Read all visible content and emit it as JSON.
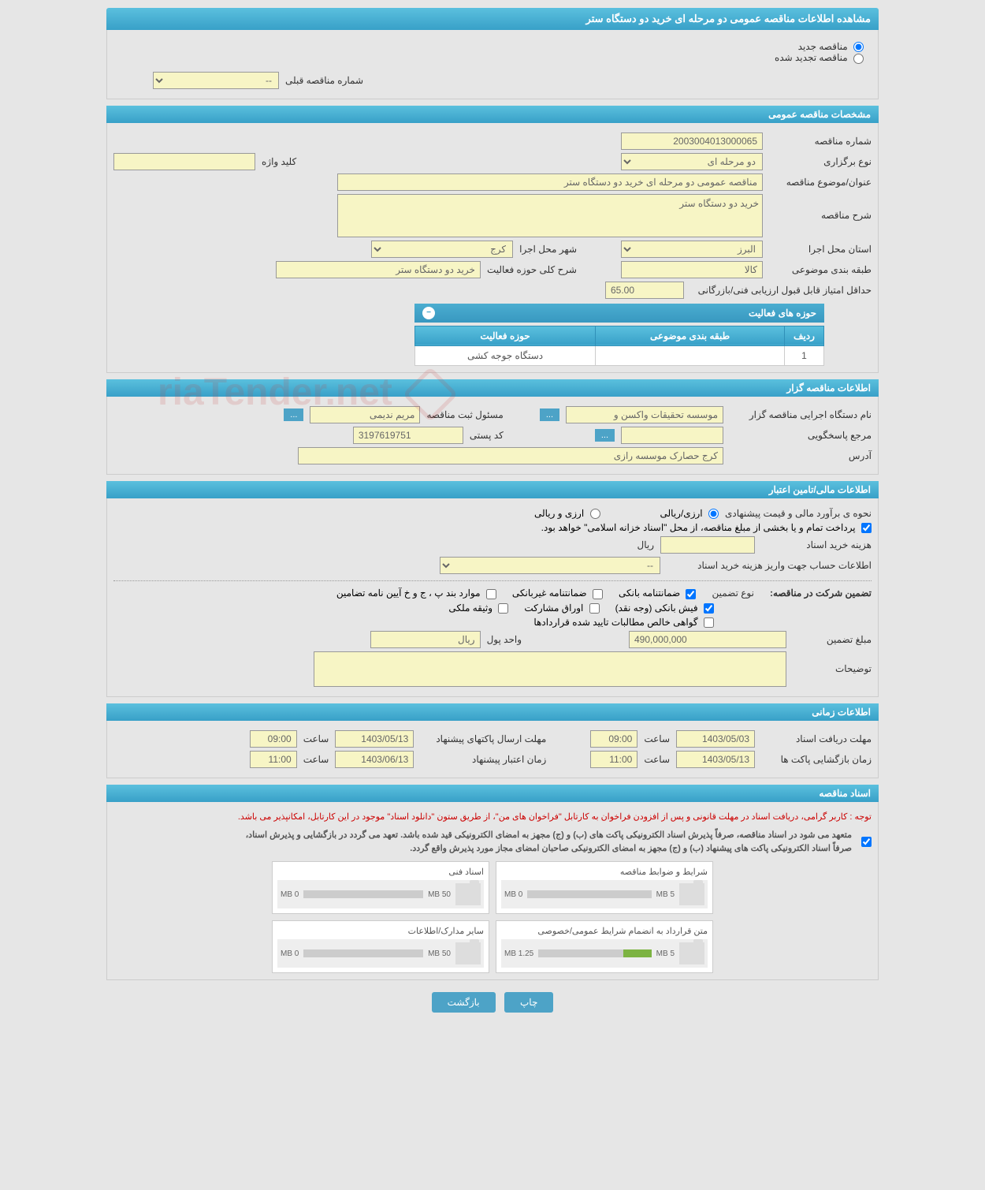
{
  "page_title": "مشاهده اطلاعات مناقصه عمومی دو مرحله ای خرید دو دستگاه ستر",
  "radio_options": {
    "new_tender": "مناقصه جدید",
    "renewed_tender": "مناقصه تجدید شده"
  },
  "prev_tender_label": "شماره مناقصه قبلی",
  "prev_tender_value": "--",
  "section_general": "مشخصات مناقصه عمومی",
  "tender_number_label": "شماره مناقصه",
  "tender_number": "2003004013000065",
  "holding_type_label": "نوع برگزاری",
  "holding_type": "دو مرحله ای",
  "keyword_label": "کلید واژه",
  "keyword": "",
  "subject_label": "عنوان/موضوع مناقصه",
  "subject": "مناقصه عمومی دو مرحله ای خرید دو دستگاه ستر",
  "description_label": "شرح مناقصه",
  "description": "خرید دو دستگاه ستر",
  "province_label": "استان محل اجرا",
  "province": "البرز",
  "city_label": "شهر محل اجرا",
  "city": "کرج",
  "category_label": "طبقه بندی موضوعی",
  "category": "کالا",
  "activity_desc_label": "شرح کلی حوزه فعالیت",
  "activity_desc": "خرید دو دستگاه ستر",
  "min_score_label": "حداقل امتیاز قابل قبول ارزیابی فنی/بازرگانی",
  "min_score": "65.00",
  "activity_areas_header": "حوزه های فعالیت",
  "table_headers": {
    "row": "ردیف",
    "category": "طبقه بندی موضوعی",
    "activity": "حوزه فعالیت"
  },
  "table_rows": [
    {
      "row": "1",
      "category": "",
      "activity": "دستگاه جوجه کشی"
    }
  ],
  "section_organizer": "اطلاعات مناقصه گزار",
  "org_name_label": "نام دستگاه اجرایی مناقصه گزار",
  "org_name": "موسسه تحقیقات واکسن و",
  "registrar_label": "مسئول ثبت مناقصه",
  "registrar": "مریم ندیمی",
  "contact_label": "مرجع پاسخگویی",
  "contact": "",
  "postal_label": "کد پستی",
  "postal": "3197619751",
  "address_label": "آدرس",
  "address": "کرج حصارک موسسه رازی",
  "section_financial": "اطلاعات مالی/تامین اعتبار",
  "estimate_label": "نحوه ی برآورد مالی و قیمت پیشنهادی",
  "currency_rial": "ارزی/ریالی",
  "currency_both": "ارزی و ریالی",
  "treasury_note": "پرداخت تمام و یا بخشی از مبلغ مناقصه، از محل \"اسناد خزانه اسلامی\" خواهد بود.",
  "doc_cost_label": "هزینه خرید اسناد",
  "doc_cost_unit": "ریال",
  "account_label": "اطلاعات حساب جهت واریز هزینه خرید اسناد",
  "account_value": "--",
  "guarantee_title": "تضمین شرکت در مناقصه:",
  "guarantee_type_label": "نوع تضمین",
  "chk_bank_guarantee": "ضمانتنامه بانکی",
  "chk_nonbank_guarantee": "ضمانتنامه غیربانکی",
  "chk_regulation": "موارد بند پ ، ج و خ آیین نامه تضامین",
  "chk_cash": "فیش بانکی (وجه نقد)",
  "chk_bonds": "اوراق مشارکت",
  "chk_property": "وثیقه ملکی",
  "chk_certificate": "گواهی خالص مطالبات تایید شده قراردادها",
  "guarantee_amount_label": "مبلغ تضمین",
  "guarantee_amount": "490,000,000",
  "currency_unit_label": "واحد پول",
  "currency_unit": "ریال",
  "notes_label": "توضیحات",
  "section_time": "اطلاعات زمانی",
  "doc_deadline_label": "مهلت دریافت اسناد",
  "doc_deadline_date": "1403/05/03",
  "doc_deadline_time_label": "ساعت",
  "doc_deadline_time": "09:00",
  "submit_deadline_label": "مهلت ارسال پاکتهای پیشنهاد",
  "submit_deadline_date": "1403/05/13",
  "submit_deadline_time": "09:00",
  "opening_label": "زمان بازگشایی پاکت ها",
  "opening_date": "1403/05/13",
  "opening_time_label": "ساعت",
  "opening_time": "11:00",
  "validity_label": "زمان اعتبار پیشنهاد",
  "validity_date": "1403/06/13",
  "validity_time": "11:00",
  "section_docs": "اسناد مناقصه",
  "notice_red": "توجه : کاربر گرامی، دریافت اسناد در مهلت قانونی و پس از افزودن فراخوان به کارتابل \"فراخوان های من\"، از طریق ستون \"دانلود اسناد\" موجود در این کارتابل، امکانپذیر می باشد.",
  "notice_1": "متعهد می شود در اسناد مناقصه، صرفاً پذیرش اسناد الکترونیکی پاکت های (ب) و (ج) مجهز به امضای الکترونیکی قید شده باشد. تعهد می گردد در بازگشایی و پذیرش اسناد،",
  "notice_2": "صرفاً اسناد الکترونیکی پاکت های پیشنهاد (ب) و (ج) مجهز به امضای الکترونیکی صاحبان امضای مجاز مورد پذیرش واقع گردد.",
  "files": [
    {
      "title": "شرایط و ضوابط مناقصه",
      "used": "0 MB",
      "total": "5 MB",
      "pct": 0
    },
    {
      "title": "اسناد فنی",
      "used": "0 MB",
      "total": "50 MB",
      "pct": 0
    },
    {
      "title": "متن قرارداد به انضمام شرایط عمومی/خصوصی",
      "used": "1.25 MB",
      "total": "5 MB",
      "pct": 25
    },
    {
      "title": "سایر مدارک/اطلاعات",
      "used": "0 MB",
      "total": "50 MB",
      "pct": 0
    }
  ],
  "btn_print": "چاپ",
  "btn_back": "بازگشت",
  "colors": {
    "header_bg": "#4bb0d4",
    "yellow_bg": "#f7f5c5",
    "page_bg": "#e6e6e6",
    "red_text": "#cc0000"
  }
}
